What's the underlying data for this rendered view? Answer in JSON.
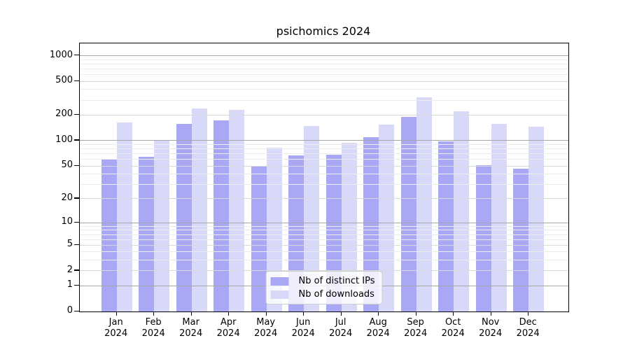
{
  "chart_data": {
    "type": "bar",
    "title": "psichomics 2024",
    "categories": [
      "Jan",
      "Feb",
      "Mar",
      "Apr",
      "May",
      "Jun",
      "Jul",
      "Aug",
      "Sep",
      "Oct",
      "Nov",
      "Dec"
    ],
    "category_year": "2024",
    "series": [
      {
        "name": "Nb of distinct IPs",
        "color": "#a8a8f5",
        "values": [
          60,
          64,
          157,
          174,
          50,
          67,
          68,
          110,
          191,
          98,
          51,
          46
        ]
      },
      {
        "name": "Nb of downloads",
        "color": "#d8d8f9",
        "values": [
          163,
          100,
          238,
          229,
          82,
          149,
          94,
          156,
          324,
          222,
          159,
          146
        ]
      }
    ],
    "xlabel": "",
    "ylabel": "",
    "yscale": "log(value+1)",
    "yticks": [
      0,
      1,
      2,
      5,
      10,
      20,
      50,
      100,
      200,
      500,
      1000
    ],
    "ylim": [
      0,
      1400
    ],
    "grid": true,
    "legend_position": "inside-bottom-center",
    "colors": {
      "axis": "#000000",
      "grid_major": "#a6a6a6",
      "grid_mid": "#d9d9d9",
      "grid_minor": "#ececec",
      "legend_border": "#cccccc"
    }
  }
}
